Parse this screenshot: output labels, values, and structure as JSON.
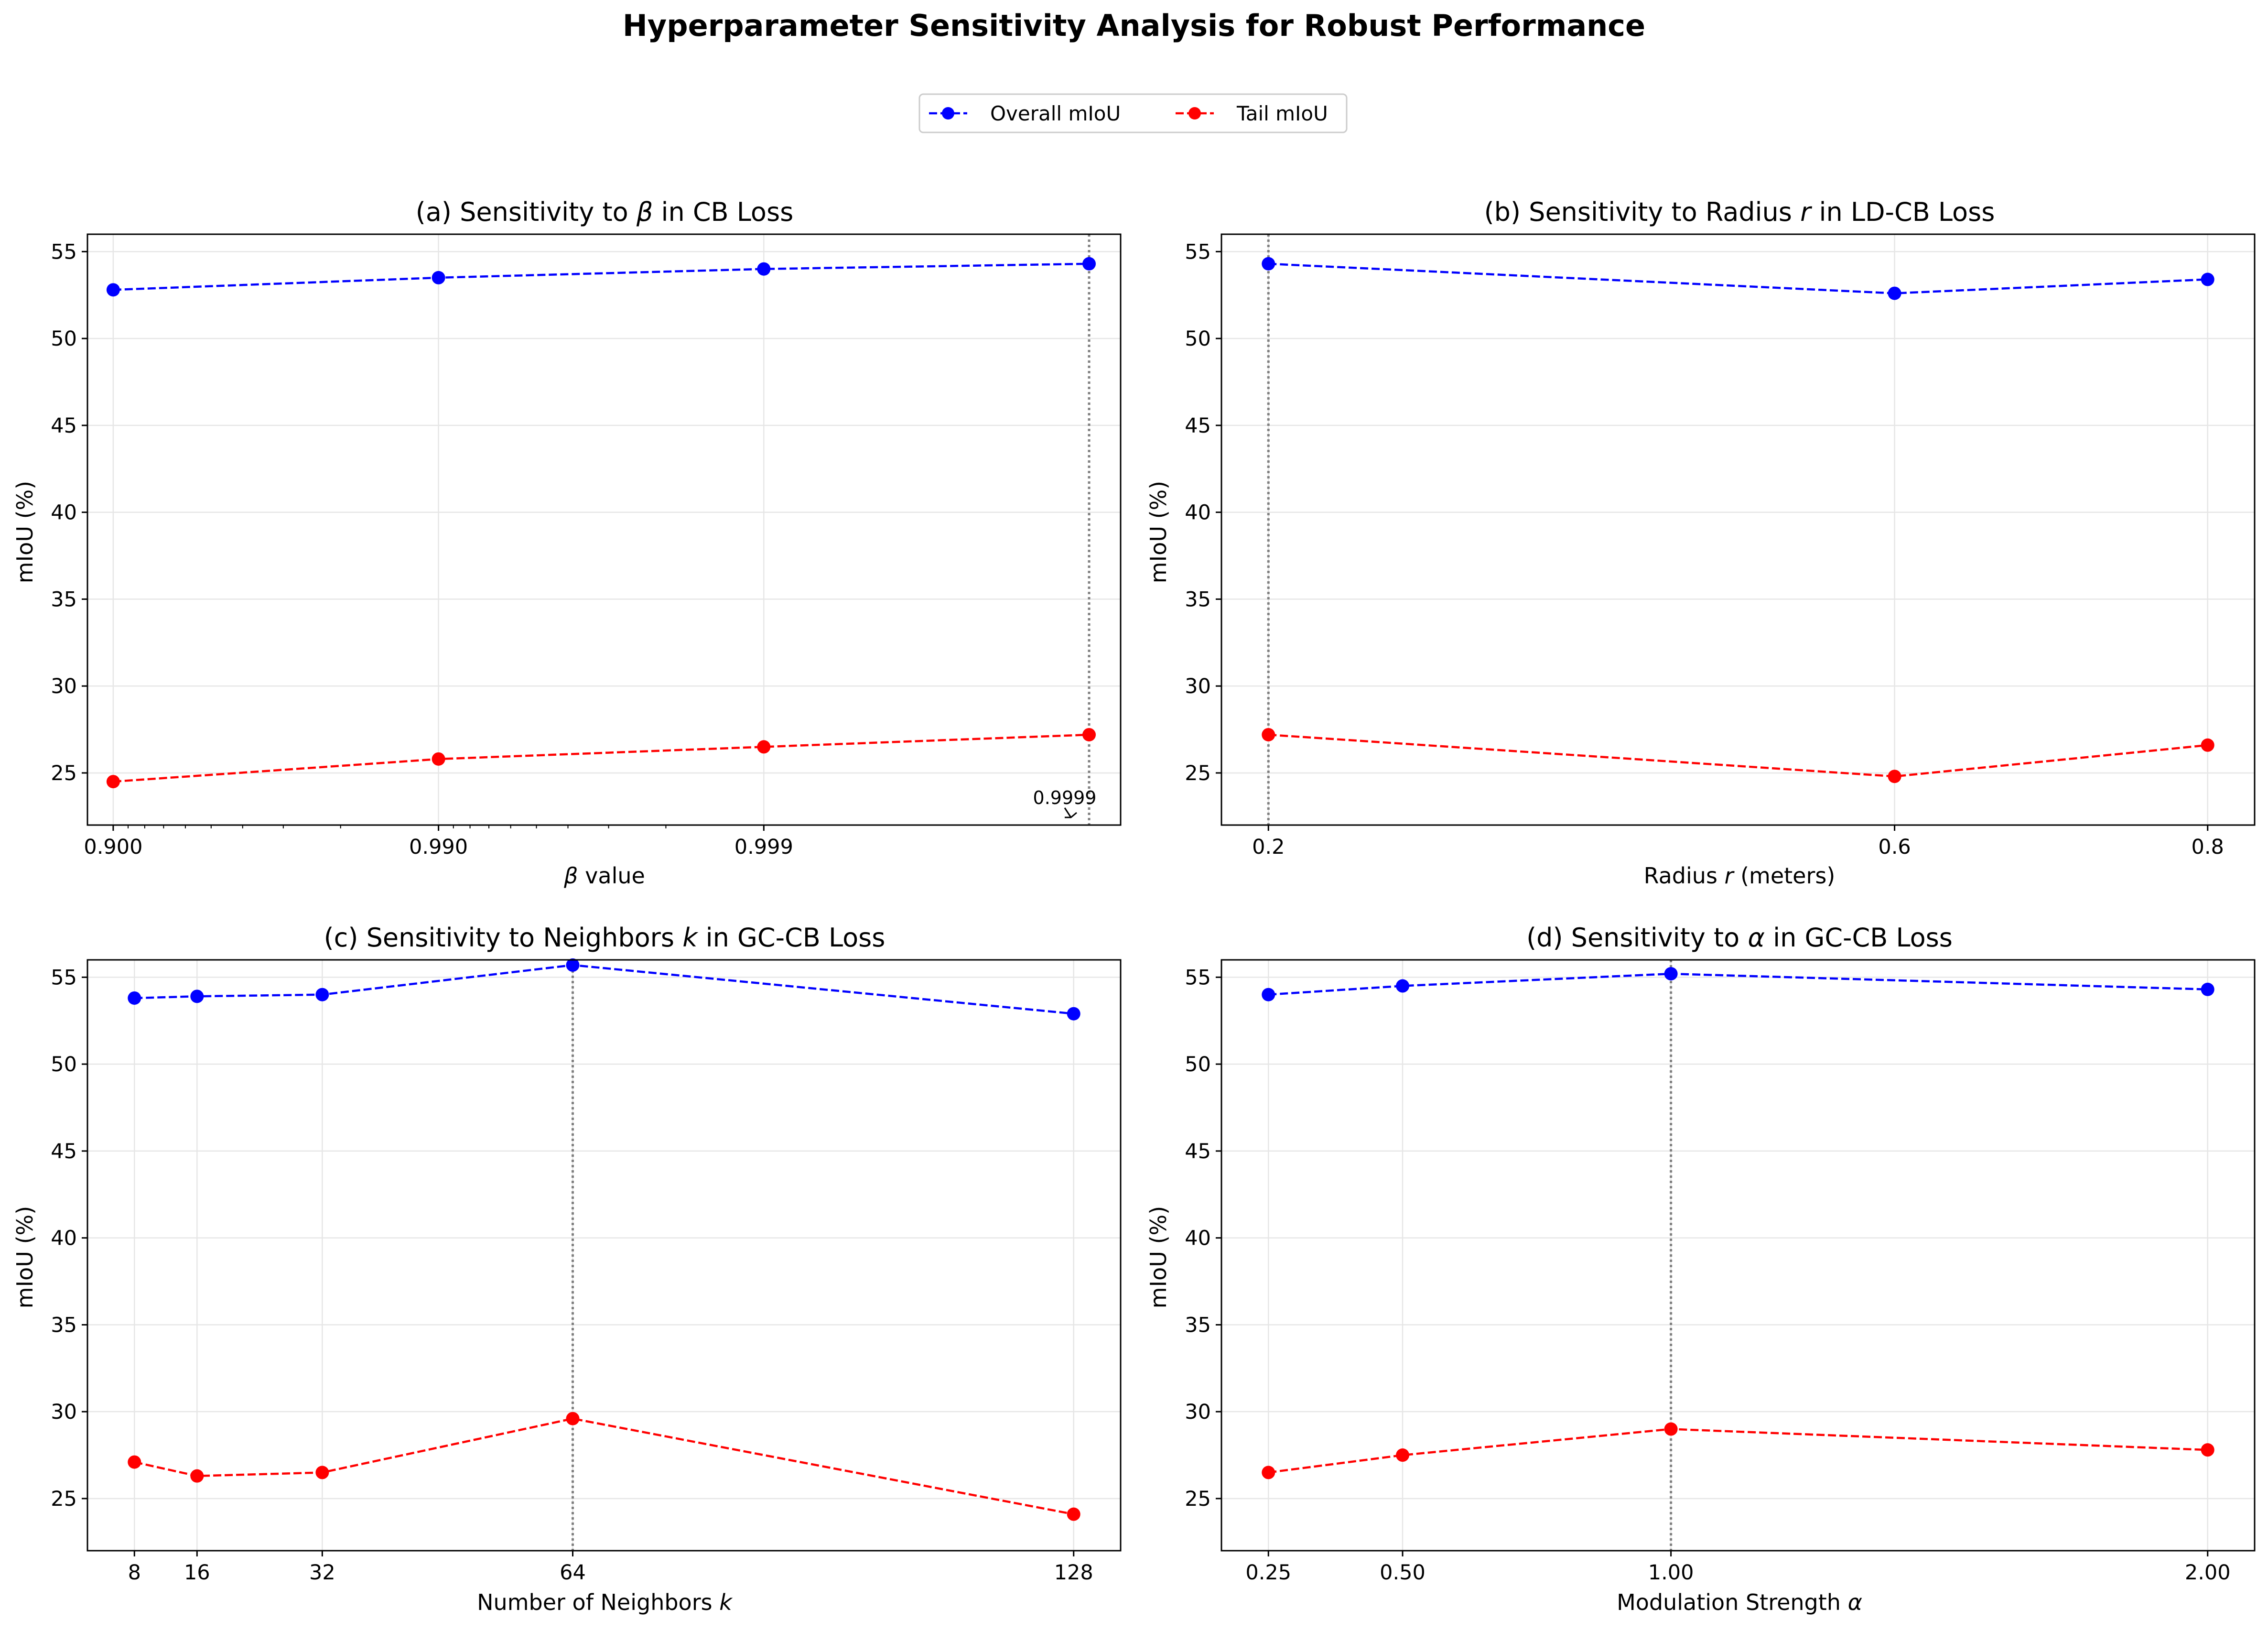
{
  "figure": {
    "title": "Hyperparameter Sensitivity Analysis for Robust Performance",
    "legend": {
      "overall": "Overall mIoU",
      "tail": "Tail mIoU",
      "placement": "top-center"
    },
    "colors": {
      "overall": "#0000ff",
      "tail": "#ff0000",
      "grid": "#e6e6e6",
      "best_line": "#808080"
    }
  },
  "chart_data": [
    {
      "type": "line",
      "panel": "a",
      "title_prefix": "(a) Sensitivity to ",
      "title_symbol": "β",
      "title_suffix": " in CB Loss",
      "xlabel_symbol": "β",
      "xlabel_suffix": " value",
      "ylabel": "mIoU (%)",
      "xscale": "log-one-minus",
      "x": [
        0.9,
        0.99,
        0.999,
        0.9999
      ],
      "xlim": [
        0.88,
        0.99992
      ],
      "xticks": [
        0.9,
        0.99,
        0.999
      ],
      "xtick_labels": [
        "0.900",
        "0.990",
        "0.999"
      ],
      "ylim": [
        22,
        56
      ],
      "yticks": [
        25,
        30,
        35,
        40,
        45,
        50,
        55
      ],
      "best_x": 0.9999,
      "annotation": "0.9999",
      "series": [
        {
          "name": "Overall mIoU",
          "values": [
            52.8,
            53.5,
            54.0,
            54.3
          ]
        },
        {
          "name": "Tail mIoU",
          "values": [
            24.5,
            25.8,
            26.5,
            27.2
          ]
        }
      ]
    },
    {
      "type": "line",
      "panel": "b",
      "title_prefix": "(b) Sensitivity to Radius ",
      "title_symbol": "r",
      "title_suffix": " in LD-CB Loss",
      "xlabel_prefix": "Radius ",
      "xlabel_symbol": "r",
      "xlabel_suffix": " (meters)",
      "ylabel": "mIoU (%)",
      "xscale": "linear",
      "x": [
        0.2,
        0.6,
        0.8
      ],
      "xlim": [
        0.17,
        0.83
      ],
      "xticks": [
        0.2,
        0.6,
        0.8
      ],
      "xtick_labels": [
        "0.2",
        "0.6",
        "0.8"
      ],
      "ylim": [
        22,
        56
      ],
      "yticks": [
        25,
        30,
        35,
        40,
        45,
        50,
        55
      ],
      "best_x": 0.2,
      "series": [
        {
          "name": "Overall mIoU",
          "values": [
            54.3,
            52.6,
            53.4
          ]
        },
        {
          "name": "Tail mIoU",
          "values": [
            27.2,
            24.8,
            26.6
          ]
        }
      ]
    },
    {
      "type": "line",
      "panel": "c",
      "title_prefix": "(c) Sensitivity to Neighbors ",
      "title_symbol": "k",
      "title_suffix": " in GC-CB Loss",
      "xlabel_prefix": "Number of Neighbors ",
      "xlabel_symbol": "k",
      "ylabel": "mIoU (%)",
      "xscale": "linear",
      "x": [
        8,
        16,
        32,
        64,
        128
      ],
      "xlim": [
        2,
        134
      ],
      "xticks": [
        8,
        16,
        32,
        64,
        128
      ],
      "xtick_labels": [
        "8",
        "16",
        "32",
        "64",
        "128"
      ],
      "ylim": [
        22,
        56
      ],
      "yticks": [
        25,
        30,
        35,
        40,
        45,
        50,
        55
      ],
      "best_x": 64,
      "series": [
        {
          "name": "Overall mIoU",
          "values": [
            53.8,
            53.9,
            54.0,
            55.7,
            52.9
          ]
        },
        {
          "name": "Tail mIoU",
          "values": [
            27.1,
            26.3,
            26.5,
            29.6,
            24.1
          ]
        }
      ]
    },
    {
      "type": "line",
      "panel": "d",
      "title_prefix": "(d) Sensitivity to ",
      "title_symbol": "α",
      "title_suffix": " in GC-CB Loss",
      "xlabel_prefix": "Modulation Strength ",
      "xlabel_symbol": "α",
      "ylabel": "mIoU (%)",
      "xscale": "linear",
      "x": [
        0.25,
        0.5,
        1.0,
        2.0
      ],
      "xlim": [
        0.1625,
        2.0875
      ],
      "xticks": [
        0.25,
        0.5,
        1.0,
        2.0
      ],
      "xtick_labels": [
        "0.25",
        "0.50",
        "1.00",
        "2.00"
      ],
      "ylim": [
        22,
        56
      ],
      "yticks": [
        25,
        30,
        35,
        40,
        45,
        50,
        55
      ],
      "best_x": 1.0,
      "series": [
        {
          "name": "Overall mIoU",
          "values": [
            54.0,
            54.5,
            55.2,
            54.3
          ]
        },
        {
          "name": "Tail mIoU",
          "values": [
            26.5,
            27.5,
            29.0,
            27.8
          ]
        }
      ]
    }
  ]
}
